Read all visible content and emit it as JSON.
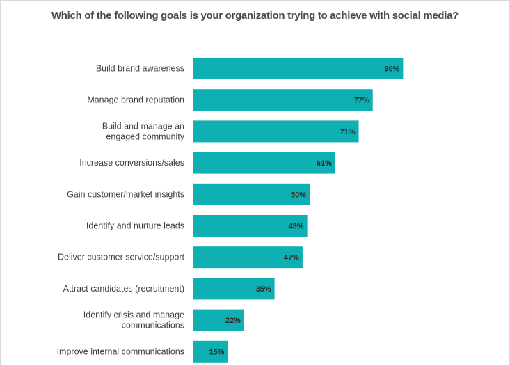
{
  "chart_data": {
    "type": "bar",
    "orientation": "horizontal",
    "title": "Which of the following goals is your organization trying to achieve with social media?",
    "categories": [
      "Build brand awareness",
      "Manage brand reputation",
      "Build and manage an engaged community",
      "Increase conversions/sales",
      "Gain customer/market insights",
      "Identify and nurture leads",
      "Deliver customer service/support",
      "Attract candidates (recruitment)",
      "Identify crisis and manage communications",
      "Improve internal communications"
    ],
    "category_lines": [
      [
        "Build brand awareness"
      ],
      [
        "Manage brand reputation"
      ],
      [
        "Build and manage an",
        "engaged community"
      ],
      [
        "Increase conversions/sales"
      ],
      [
        "Gain customer/market insights"
      ],
      [
        "Identify and nurture leads"
      ],
      [
        "Deliver customer service/support"
      ],
      [
        "Attract candidates (recruitment)"
      ],
      [
        "Identify crisis and manage",
        "communications"
      ],
      [
        "Improve internal communications"
      ]
    ],
    "values": [
      90,
      77,
      71,
      61,
      50,
      49,
      47,
      35,
      22,
      15
    ],
    "value_labels": [
      "90%",
      "77%",
      "71%",
      "61%",
      "50%",
      "49%",
      "47%",
      "35%",
      "22%",
      "15%"
    ],
    "unit": "%",
    "xlim": [
      0,
      100
    ],
    "bar_color": "#0fb0b4",
    "grid": false,
    "legend": "none"
  }
}
